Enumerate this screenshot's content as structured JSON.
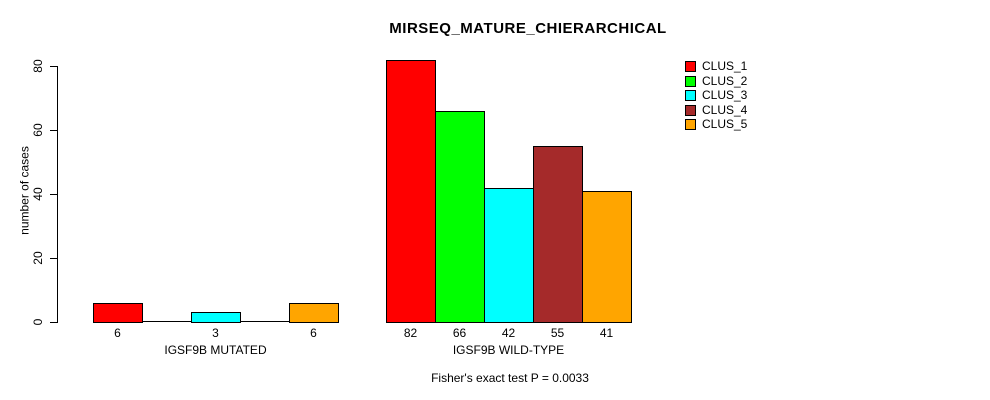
{
  "chart_data": {
    "type": "bar",
    "title": "MIRSEQ_MATURE_CHIERARCHICAL",
    "xlabel": "",
    "ylabel": "number of cases",
    "annotation": "Fisher's exact test P = 0.0033",
    "ylim": [
      0,
      80
    ],
    "yticks": [
      0,
      20,
      40,
      60,
      80
    ],
    "grid": false,
    "legend_position": "top-right",
    "legend": [
      {
        "label": "CLUS_1",
        "color": "#FF0000"
      },
      {
        "label": "CLUS_2",
        "color": "#00FF00"
      },
      {
        "label": "CLUS_3",
        "color": "#00FFFF"
      },
      {
        "label": "CLUS_4",
        "color": "#A52A2A"
      },
      {
        "label": "CLUS_5",
        "color": "#FFA500"
      }
    ],
    "groups": [
      {
        "label": "IGSF9B MUTATED",
        "values": [
          6,
          0,
          3,
          0,
          6
        ],
        "bar_labels": [
          "6",
          "",
          "3",
          "",
          "6"
        ]
      },
      {
        "label": "IGSF9B WILD-TYPE",
        "values": [
          82,
          66,
          42,
          55,
          41
        ],
        "bar_labels": [
          "82",
          "66",
          "42",
          "55",
          "41"
        ]
      }
    ]
  }
}
